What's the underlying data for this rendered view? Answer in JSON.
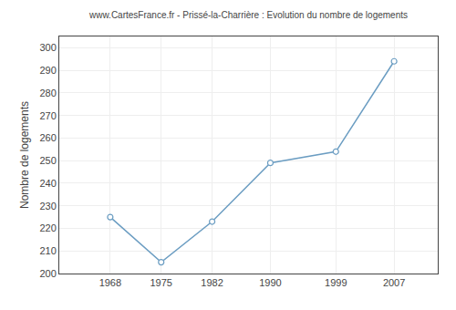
{
  "chart_data": {
    "type": "line",
    "title": "www.CartesFrance.fr - Prissé-la-Charrière : Evolution du nombre de logements",
    "ylabel": "Nombre de logements",
    "x": [
      1968,
      1975,
      1982,
      1990,
      1999,
      2007
    ],
    "values": [
      225,
      205,
      223,
      249,
      254,
      294
    ],
    "color": "#6b9dc2",
    "marker": "circle",
    "xlim": [
      1961,
      2013
    ],
    "xticks": [
      1968,
      1975,
      1982,
      1990,
      1999,
      2007
    ],
    "ylim": [
      200,
      305
    ],
    "yticks": [
      200,
      210,
      220,
      230,
      240,
      250,
      260,
      270,
      280,
      290,
      300
    ],
    "grid": true
  }
}
